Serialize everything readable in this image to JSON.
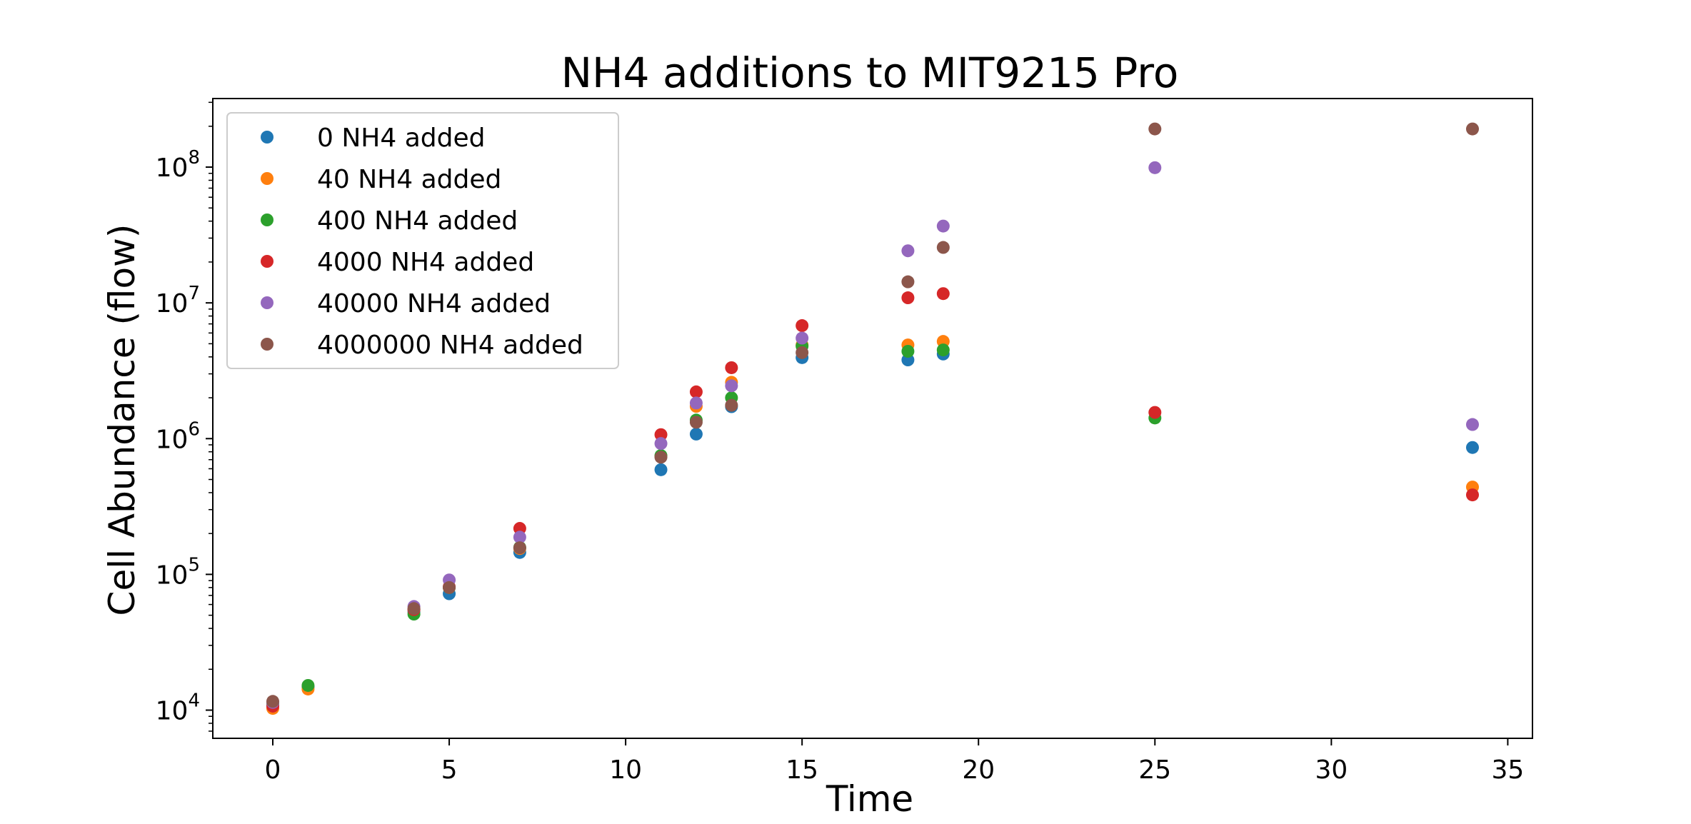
{
  "chart_data": {
    "type": "scatter",
    "title": "NH4 additions to MIT9215 Pro",
    "xlabel": "Time",
    "ylabel": "Cell Abundance (flow)",
    "xlim": [
      -1.7,
      35.7
    ],
    "ylim": [
      6200,
      320000000
    ],
    "yscale": "log",
    "x_ticks": [
      0,
      5,
      10,
      15,
      20,
      25,
      30,
      35
    ],
    "y_ticks": [
      {
        "value": 10000,
        "base": "10",
        "exp": "4"
      },
      {
        "value": 100000,
        "base": "10",
        "exp": "5"
      },
      {
        "value": 1000000,
        "base": "10",
        "exp": "6"
      },
      {
        "value": 10000000,
        "base": "10",
        "exp": "7"
      },
      {
        "value": 100000000,
        "base": "10",
        "exp": "8"
      }
    ],
    "grid": false,
    "legend_position": "top-left",
    "series": [
      {
        "name": "0 NH4 added",
        "color": "#1f77b4",
        "points": [
          [
            0,
            10800
          ],
          [
            1,
            14800
          ],
          [
            4,
            53000
          ],
          [
            5,
            72000
          ],
          [
            7,
            145000
          ],
          [
            11,
            590000
          ],
          [
            12,
            1080000
          ],
          [
            13,
            1720000
          ],
          [
            15,
            3950000
          ],
          [
            18,
            3800000
          ],
          [
            19,
            4200000
          ],
          [
            34,
            860000
          ]
        ]
      },
      {
        "name": "40 NH4 added",
        "color": "#ff7f0e",
        "points": [
          [
            0,
            10300
          ],
          [
            1,
            14300
          ],
          [
            4,
            55000
          ],
          [
            5,
            80000
          ],
          [
            7,
            155000
          ],
          [
            11,
            740000
          ],
          [
            12,
            1730000
          ],
          [
            13,
            2600000
          ],
          [
            15,
            4900000
          ],
          [
            18,
            4900000
          ],
          [
            19,
            5200000
          ],
          [
            34,
            440000
          ]
        ]
      },
      {
        "name": "400 NH4 added",
        "color": "#2ca02c",
        "points": [
          [
            0,
            11200
          ],
          [
            1,
            15200
          ],
          [
            4,
            51000
          ],
          [
            5,
            80000
          ],
          [
            7,
            158000
          ],
          [
            11,
            750000
          ],
          [
            12,
            1370000
          ],
          [
            13,
            2000000
          ],
          [
            15,
            4800000
          ],
          [
            18,
            4400000
          ],
          [
            19,
            4500000
          ],
          [
            25,
            1420000
          ]
        ]
      },
      {
        "name": "4000 NH4 added",
        "color": "#d62728",
        "points": [
          [
            0,
            10700
          ],
          [
            4,
            55000
          ],
          [
            5,
            81000
          ],
          [
            7,
            218000
          ],
          [
            11,
            1070000
          ],
          [
            12,
            2210000
          ],
          [
            13,
            3330000
          ],
          [
            15,
            6800000
          ],
          [
            18,
            10900000
          ],
          [
            19,
            11700000
          ],
          [
            25,
            1560000
          ],
          [
            34,
            385000
          ]
        ]
      },
      {
        "name": "40000 NH4 added",
        "color": "#9467bd",
        "points": [
          [
            0,
            11400
          ],
          [
            4,
            58000
          ],
          [
            5,
            91000
          ],
          [
            7,
            188000
          ],
          [
            11,
            920000
          ],
          [
            12,
            1830000
          ],
          [
            13,
            2450000
          ],
          [
            15,
            5500000
          ],
          [
            18,
            24200000
          ],
          [
            19,
            36800000
          ],
          [
            25,
            99000000
          ],
          [
            34,
            1270000
          ]
        ]
      },
      {
        "name": "4000000 NH4 added",
        "color": "#8c564b",
        "points": [
          [
            0,
            11600
          ],
          [
            4,
            56000
          ],
          [
            5,
            80000
          ],
          [
            7,
            157000
          ],
          [
            11,
            730000
          ],
          [
            12,
            1320000
          ],
          [
            13,
            1760000
          ],
          [
            15,
            4300000
          ],
          [
            18,
            14300000
          ],
          [
            19,
            25600000
          ],
          [
            25,
            191000000
          ],
          [
            34,
            191000000
          ]
        ]
      }
    ]
  }
}
